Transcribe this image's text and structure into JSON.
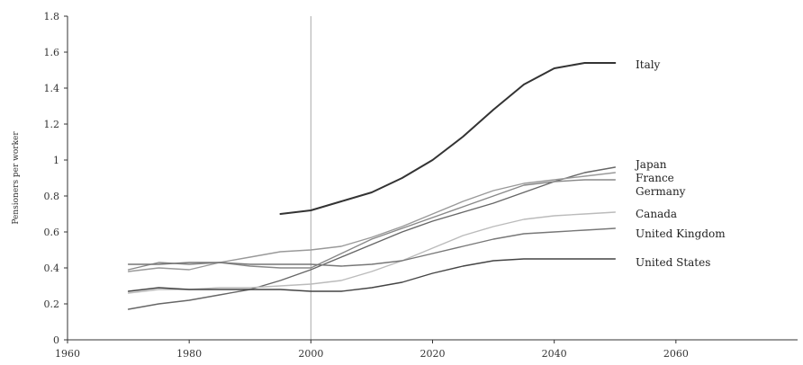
{
  "chart_data": {
    "type": "line",
    "title": "",
    "xlabel": "",
    "ylabel": "Pensioners per worker",
    "xlim": [
      1960,
      2080
    ],
    "ylim": [
      0,
      1.8
    ],
    "xticks": [
      "1960",
      "1980",
      "2000",
      "2020",
      "2040",
      "2060"
    ],
    "yticks": [
      "0",
      "0.2",
      "0.4",
      "0.6",
      "0.8",
      "1",
      "1.2",
      "1.4",
      "1.6",
      "1.8"
    ],
    "reference_line_x": 2000,
    "grid": false,
    "legend": "labels at line ends (right)",
    "series": [
      {
        "name": "Italy",
        "color": "#333333",
        "x": [
          1995,
          2000,
          2005,
          2010,
          2015,
          2020,
          2025,
          2030,
          2035,
          2040,
          2045,
          2050
        ],
        "values": [
          0.7,
          0.72,
          0.77,
          0.82,
          0.9,
          1.0,
          1.13,
          1.28,
          1.42,
          1.51,
          1.54,
          1.54
        ]
      },
      {
        "name": "Japan",
        "color": "#666666",
        "x": [
          1970,
          1975,
          1980,
          1985,
          1990,
          1995,
          2000,
          2005,
          2010,
          2015,
          2020,
          2025,
          2030,
          2035,
          2040,
          2045,
          2050
        ],
        "values": [
          0.17,
          0.2,
          0.22,
          0.25,
          0.28,
          0.33,
          0.39,
          0.46,
          0.53,
          0.6,
          0.66,
          0.71,
          0.76,
          0.82,
          0.88,
          0.93,
          0.96
        ]
      },
      {
        "name": "France",
        "color": "#999999",
        "x": [
          1970,
          1975,
          1980,
          1985,
          1990,
          1995,
          2000,
          2005,
          2010,
          2015,
          2020,
          2025,
          2030,
          2035,
          2040,
          2045,
          2050
        ],
        "values": [
          0.38,
          0.4,
          0.39,
          0.43,
          0.46,
          0.49,
          0.5,
          0.52,
          0.57,
          0.63,
          0.7,
          0.77,
          0.83,
          0.87,
          0.89,
          0.91,
          0.93
        ]
      },
      {
        "name": "Germany",
        "color": "#888888",
        "x": [
          1970,
          1975,
          1980,
          1985,
          1990,
          1995,
          2000,
          2005,
          2010,
          2015,
          2020,
          2025,
          2030,
          2035,
          2040,
          2045,
          2050
        ],
        "values": [
          0.39,
          0.43,
          0.42,
          0.43,
          0.41,
          0.4,
          0.4,
          0.48,
          0.56,
          0.62,
          0.68,
          0.74,
          0.8,
          0.86,
          0.88,
          0.89,
          0.89
        ]
      },
      {
        "name": "Canada",
        "color": "#bbbbbb",
        "x": [
          1970,
          1975,
          1980,
          1985,
          1990,
          1995,
          2000,
          2005,
          2010,
          2015,
          2020,
          2025,
          2030,
          2035,
          2040,
          2045,
          2050
        ],
        "values": [
          0.26,
          0.28,
          0.28,
          0.29,
          0.29,
          0.3,
          0.31,
          0.33,
          0.38,
          0.44,
          0.51,
          0.58,
          0.63,
          0.67,
          0.69,
          0.7,
          0.71
        ]
      },
      {
        "name": "United Kingdom",
        "color": "#777777",
        "x": [
          1970,
          1975,
          1980,
          1985,
          1990,
          1995,
          2000,
          2005,
          2010,
          2015,
          2020,
          2025,
          2030,
          2035,
          2040,
          2045,
          2050
        ],
        "values": [
          0.42,
          0.42,
          0.43,
          0.43,
          0.42,
          0.42,
          0.42,
          0.41,
          0.42,
          0.44,
          0.48,
          0.52,
          0.56,
          0.59,
          0.6,
          0.61,
          0.62
        ]
      },
      {
        "name": "United States",
        "color": "#444444",
        "x": [
          1970,
          1975,
          1980,
          1985,
          1990,
          1995,
          2000,
          2005,
          2010,
          2015,
          2020,
          2025,
          2030,
          2035,
          2040,
          2045,
          2050
        ],
        "values": [
          0.27,
          0.29,
          0.28,
          0.28,
          0.28,
          0.28,
          0.27,
          0.27,
          0.29,
          0.32,
          0.37,
          0.41,
          0.44,
          0.45,
          0.45,
          0.45,
          0.45
        ]
      }
    ]
  }
}
